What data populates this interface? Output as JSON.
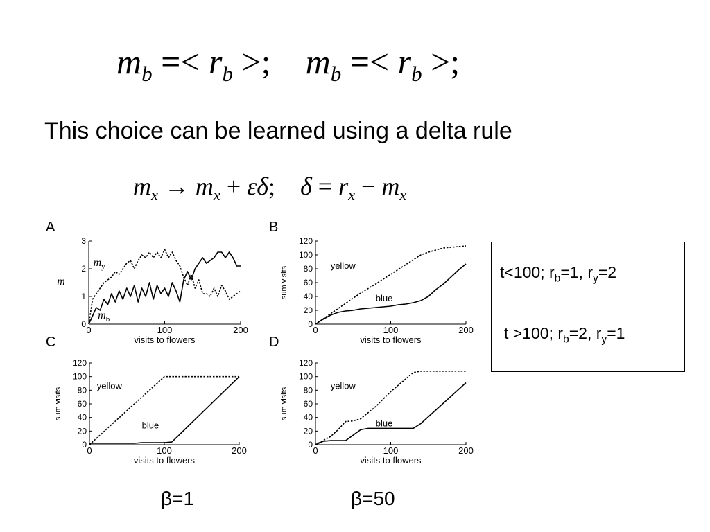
{
  "equations": {
    "top": {
      "m1": "m",
      "b1": "b",
      "op1": "=<",
      "r1": "r",
      "b2": "b",
      "close1": ">;",
      "m2": "m",
      "b3": "b",
      "op2": "=<",
      "r2": "r",
      "b4": "b",
      "close2": ">;"
    },
    "delta": {
      "m1": "m",
      "x1": "x",
      "arrow": "→",
      "m2": "m",
      "x2": "x",
      "plus": "+",
      "eps_delta": "εδ",
      "semi": ";",
      "delta": "δ",
      "eq": "=",
      "r": "r",
      "x3": "x",
      "minus": "−",
      "m3": "m",
      "x4": "x"
    }
  },
  "subtitle": "This choice can be learned using a  delta rule",
  "info_box": {
    "line1": {
      "pre": "t<100; r",
      "sub1": "b",
      "mid": "=1, r",
      "sub2": "y",
      "post": "=2"
    },
    "line2": {
      "pre": "t >100; r",
      "sub1": "b",
      "mid": "=2, r",
      "sub2": "y",
      "post": "=1"
    }
  },
  "betas": {
    "left": "β=1",
    "right": "β=50"
  },
  "chart_data": [
    {
      "panel": "A",
      "type": "line",
      "xlabel": "visits to flowers",
      "ylabel": "m",
      "xlim": [
        0,
        200
      ],
      "ylim": [
        0,
        3
      ],
      "xticks": [
        0,
        100,
        200
      ],
      "yticks": [
        0,
        1,
        2,
        3
      ],
      "series": [
        {
          "name": "m_y",
          "label_main": "m",
          "label_sub": "y",
          "style": "dotted",
          "x": [
            0,
            5,
            10,
            15,
            20,
            25,
            30,
            35,
            40,
            45,
            50,
            55,
            60,
            65,
            70,
            75,
            80,
            85,
            90,
            95,
            100,
            105,
            110,
            115,
            120,
            125,
            130,
            135,
            140,
            145,
            150,
            155,
            160,
            165,
            170,
            175,
            180,
            185,
            190,
            195,
            200
          ],
          "y": [
            0,
            0.9,
            1.1,
            1.3,
            1.5,
            1.6,
            1.7,
            1.9,
            1.8,
            2.0,
            2.2,
            2.3,
            2.0,
            2.3,
            2.5,
            2.4,
            2.6,
            2.4,
            2.6,
            2.4,
            2.7,
            2.4,
            2.6,
            2.3,
            2.1,
            1.7,
            1.4,
            1.8,
            1.3,
            1.6,
            1.1,
            1.1,
            1.0,
            1.3,
            1.0,
            1.4,
            1.2,
            0.9,
            1.0,
            1.1,
            1.2
          ]
        },
        {
          "name": "m_b",
          "label_main": "m",
          "label_sub": "b",
          "style": "solid",
          "x": [
            0,
            5,
            10,
            15,
            20,
            25,
            30,
            35,
            40,
            45,
            50,
            55,
            60,
            65,
            70,
            75,
            80,
            85,
            90,
            95,
            100,
            105,
            110,
            115,
            120,
            125,
            130,
            135,
            140,
            145,
            150,
            155,
            160,
            165,
            170,
            175,
            180,
            185,
            190,
            195,
            200
          ],
          "y": [
            0,
            0.3,
            0.6,
            0.5,
            0.9,
            0.7,
            1.1,
            0.8,
            1.2,
            0.9,
            1.3,
            1.0,
            1.4,
            0.8,
            1.3,
            1.0,
            1.5,
            0.9,
            1.4,
            1.1,
            1.3,
            1.0,
            1.5,
            1.2,
            0.8,
            1.6,
            1.9,
            1.6,
            2.0,
            2.2,
            2.4,
            2.2,
            2.3,
            2.4,
            2.6,
            2.6,
            2.4,
            2.6,
            2.4,
            2.1,
            2.1
          ]
        }
      ]
    },
    {
      "panel": "B",
      "type": "line",
      "xlabel": "visits to flowers",
      "ylabel": "sum visits",
      "xlim": [
        0,
        200
      ],
      "ylim": [
        0,
        120
      ],
      "xticks": [
        0,
        100,
        200
      ],
      "yticks": [
        0,
        20,
        40,
        60,
        80,
        100,
        120
      ],
      "series": [
        {
          "name": "yellow",
          "style": "dotted",
          "x": [
            0,
            20,
            40,
            60,
            80,
            100,
            120,
            130,
            140,
            150,
            160,
            170,
            180,
            190,
            200
          ],
          "y": [
            0,
            15,
            30,
            45,
            58,
            72,
            86,
            93,
            100,
            104,
            107,
            110,
            111,
            112,
            113
          ]
        },
        {
          "name": "blue",
          "style": "solid",
          "x": [
            0,
            10,
            20,
            30,
            40,
            50,
            60,
            70,
            80,
            90,
            100,
            110,
            120,
            130,
            140,
            150,
            160,
            170,
            180,
            190,
            200
          ],
          "y": [
            0,
            7,
            13,
            17,
            19,
            20,
            22,
            23,
            24,
            25,
            26,
            28,
            29,
            31,
            34,
            40,
            50,
            58,
            68,
            78,
            87
          ]
        }
      ]
    },
    {
      "panel": "C",
      "type": "line",
      "xlabel": "visits to flowers",
      "ylabel": "sum visits",
      "xlim": [
        0,
        200
      ],
      "ylim": [
        0,
        120
      ],
      "xticks": [
        0,
        100,
        200
      ],
      "yticks": [
        0,
        20,
        40,
        60,
        80,
        100,
        120
      ],
      "series": [
        {
          "name": "yellow",
          "style": "dotted",
          "x": [
            0,
            100,
            200
          ],
          "y": [
            0,
            100,
            100
          ]
        },
        {
          "name": "blue",
          "style": "solid",
          "x": [
            0,
            60,
            70,
            100,
            110,
            200
          ],
          "y": [
            2,
            2,
            3,
            3,
            4,
            100
          ]
        }
      ]
    },
    {
      "panel": "D",
      "type": "line",
      "xlabel": "visits to flowers",
      "ylabel": "sum visits",
      "xlim": [
        0,
        200
      ],
      "ylim": [
        0,
        120
      ],
      "xticks": [
        0,
        100,
        200
      ],
      "yticks": [
        0,
        20,
        40,
        60,
        80,
        100,
        120
      ],
      "series": [
        {
          "name": "yellow",
          "style": "dotted",
          "x": [
            0,
            10,
            20,
            30,
            40,
            50,
            60,
            80,
            100,
            130,
            140,
            200
          ],
          "y": [
            0,
            6,
            12,
            22,
            34,
            35,
            38,
            56,
            78,
            106,
            108,
            108
          ]
        },
        {
          "name": "blue",
          "style": "solid",
          "x": [
            0,
            10,
            20,
            40,
            50,
            60,
            70,
            80,
            130,
            140,
            200
          ],
          "y": [
            0,
            5,
            6,
            6,
            14,
            22,
            24,
            24,
            24,
            31,
            91
          ]
        }
      ]
    }
  ]
}
